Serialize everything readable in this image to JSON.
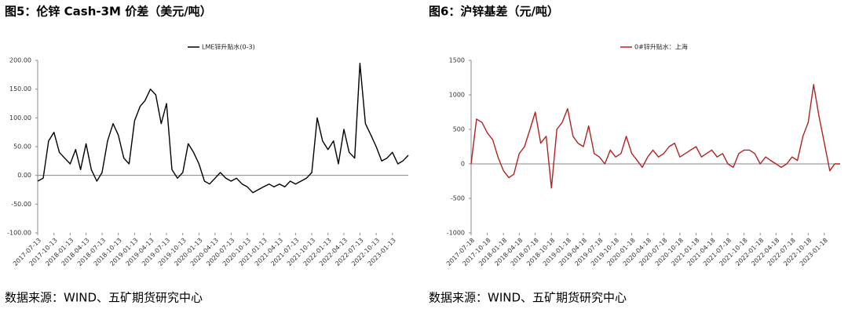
{
  "chart_data": [
    {
      "type": "line",
      "title": "图5：伦锌 Cash-3M 价差（美元/吨）",
      "source": "数据来源：WIND、五矿期货研究中心",
      "legend": "top",
      "x": [
        "2017-07-13",
        "2017-08-13",
        "2017-09-13",
        "2017-10-13",
        "2017-11-13",
        "2017-12-13",
        "2018-01-13",
        "2018-02-13",
        "2018-03-13",
        "2018-04-13",
        "2018-05-13",
        "2018-06-13",
        "2018-07-13",
        "2018-08-13",
        "2018-09-13",
        "2018-10-13",
        "2018-11-13",
        "2018-12-13",
        "2019-01-13",
        "2019-02-13",
        "2019-03-13",
        "2019-04-13",
        "2019-05-13",
        "2019-06-13",
        "2019-07-13",
        "2019-08-13",
        "2019-09-13",
        "2019-10-13",
        "2019-11-13",
        "2019-12-13",
        "2020-01-13",
        "2020-02-13",
        "2020-03-13",
        "2020-04-13",
        "2020-05-13",
        "2020-06-13",
        "2020-07-13",
        "2020-08-13",
        "2020-09-13",
        "2020-10-13",
        "2020-11-13",
        "2020-12-13",
        "2021-01-13",
        "2021-02-13",
        "2021-03-13",
        "2021-04-13",
        "2021-05-13",
        "2021-06-13",
        "2021-07-13",
        "2021-08-13",
        "2021-09-13",
        "2021-10-13",
        "2021-11-13",
        "2021-12-13",
        "2022-01-13",
        "2022-02-13",
        "2022-03-13",
        "2022-04-13",
        "2022-05-13",
        "2022-06-13",
        "2022-07-13",
        "2022-08-13",
        "2022-09-13",
        "2022-10-13",
        "2022-11-13",
        "2022-12-13",
        "2023-01-13",
        "2023-02-13",
        "2023-03-13",
        "2023-04-13"
      ],
      "series": [
        {
          "name": "LME锌升贴水(0-3)",
          "color": "#000000",
          "values": [
            -10,
            -5,
            60,
            75,
            40,
            30,
            20,
            45,
            10,
            55,
            10,
            -10,
            5,
            60,
            90,
            70,
            30,
            20,
            95,
            120,
            130,
            150,
            140,
            90,
            125,
            10,
            -5,
            5,
            55,
            40,
            20,
            -10,
            -15,
            -5,
            5,
            -5,
            -10,
            -5,
            -15,
            -20,
            -30,
            -25,
            -20,
            -15,
            -20,
            -15,
            -20,
            -10,
            -15,
            -10,
            -5,
            5,
            100,
            60,
            45,
            60,
            20,
            80,
            40,
            30,
            195,
            90,
            70,
            50,
            25,
            30,
            40,
            20,
            25,
            35
          ]
        }
      ],
      "xlim": [
        "2017-07-13",
        "2023-04-13"
      ],
      "xticks": [
        "2017-07-13",
        "2017-10-13",
        "2018-01-13",
        "2018-04-13",
        "2018-07-13",
        "2018-10-13",
        "2019-01-13",
        "2019-04-13",
        "2019-07-13",
        "2019-10-13",
        "2020-01-13",
        "2020-04-13",
        "2020-07-13",
        "2020-10-13",
        "2021-01-13",
        "2021-04-13",
        "2021-07-13",
        "2021-10-13",
        "2022-01-13",
        "2022-04-13",
        "2022-07-13",
        "2022-10-13",
        "2023-01-13"
      ],
      "ylim": [
        -100,
        200
      ],
      "yticks": [
        {
          "value": -100,
          "label": "-100.00"
        },
        {
          "value": -50,
          "label": "-50.00"
        },
        {
          "value": 0,
          "label": "0.00"
        },
        {
          "value": 50,
          "label": "50.00"
        },
        {
          "value": 100,
          "label": "100.00"
        },
        {
          "value": 150,
          "label": "150.00"
        },
        {
          "value": 200,
          "label": "200.00"
        }
      ]
    },
    {
      "type": "line",
      "title": "图6：沪锌基差（元/吨）",
      "source": "数据来源：WIND、五矿期货研究中心",
      "legend": "top",
      "x": [
        "2017-07-18",
        "2017-08-18",
        "2017-09-18",
        "2017-10-18",
        "2017-11-18",
        "2017-12-18",
        "2018-01-18",
        "2018-02-18",
        "2018-03-18",
        "2018-04-18",
        "2018-05-18",
        "2018-06-18",
        "2018-07-18",
        "2018-08-18",
        "2018-09-18",
        "2018-10-18",
        "2018-11-18",
        "2018-12-18",
        "2019-01-18",
        "2019-02-18",
        "2019-03-18",
        "2019-04-18",
        "2019-05-18",
        "2019-06-18",
        "2019-07-18",
        "2019-08-18",
        "2019-09-18",
        "2019-10-18",
        "2019-11-18",
        "2019-12-18",
        "2020-01-18",
        "2020-02-18",
        "2020-03-18",
        "2020-04-18",
        "2020-05-18",
        "2020-06-18",
        "2020-07-18",
        "2020-08-18",
        "2020-09-18",
        "2020-10-18",
        "2020-11-18",
        "2020-12-18",
        "2021-01-18",
        "2021-02-18",
        "2021-03-18",
        "2021-04-18",
        "2021-05-18",
        "2021-06-18",
        "2021-07-18",
        "2021-08-18",
        "2021-09-18",
        "2021-10-18",
        "2021-11-18",
        "2021-12-18",
        "2022-01-18",
        "2022-02-18",
        "2022-03-18",
        "2022-04-18",
        "2022-05-18",
        "2022-06-18",
        "2022-07-18",
        "2022-08-18",
        "2022-09-18",
        "2022-10-18",
        "2022-11-18",
        "2022-12-18",
        "2023-01-18",
        "2023-02-18",
        "2023-03-18",
        "2023-04-18"
      ],
      "series": [
        {
          "name": "0#锌升贴水：上海",
          "color": "#b22222",
          "values": [
            0,
            650,
            600,
            450,
            350,
            100,
            -100,
            -200,
            -150,
            150,
            250,
            500,
            750,
            300,
            400,
            -350,
            500,
            600,
            800,
            400,
            300,
            250,
            550,
            150,
            100,
            0,
            200,
            100,
            150,
            400,
            150,
            50,
            -50,
            100,
            200,
            100,
            150,
            250,
            300,
            100,
            150,
            200,
            250,
            100,
            150,
            200,
            100,
            150,
            0,
            -50,
            150,
            200,
            200,
            150,
            0,
            100,
            50,
            0,
            -50,
            0,
            100,
            50,
            400,
            600,
            1150,
            700,
            300,
            -100,
            0,
            0
          ]
        }
      ],
      "xlim": [
        "2017-07-18",
        "2023-04-18"
      ],
      "xticks": [
        "2017-07-18",
        "2017-10-18",
        "2018-01-18",
        "2018-04-18",
        "2018-07-18",
        "2018-10-18",
        "2019-01-18",
        "2019-04-18",
        "2019-07-18",
        "2019-10-18",
        "2020-01-18",
        "2020-04-18",
        "2020-07-18",
        "2020-10-18",
        "2021-01-18",
        "2021-04-18",
        "2021-07-18",
        "2021-10-18",
        "2022-01-18",
        "2022-04-18",
        "2022-07-18",
        "2022-10-18",
        "2023-01-18"
      ],
      "ylim": [
        -1000,
        1500
      ],
      "yticks": [
        -1000,
        -500,
        0,
        500,
        1000,
        1500
      ]
    }
  ]
}
